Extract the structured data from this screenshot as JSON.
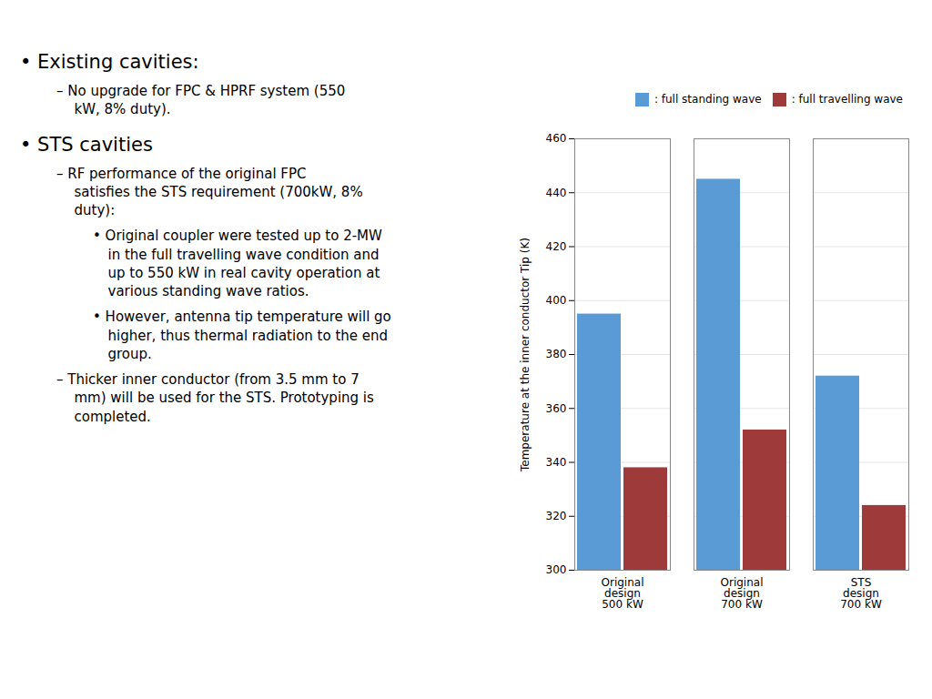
{
  "chart_data": {
    "type": "bar",
    "annotations": [
      {
        "text": "• Existing cavities:",
        "items": [
          {
            "text": "– No upgrade for FPC & HPRF system (550\nkW, 8% duty)."
          }
        ]
      },
      {
        "text": "• STS cavities",
        "items": [
          {
            "text": "– RF performance of the original FPC\nsatisfies the STS requirement (700kW, 8%\nduty):",
            "items": [
              {
                "text": "• Original coupler were tested up to 2-MW\nin the full travelling wave condition and\nup to 550 kW in real cavity operation at\nvarious standing wave ratios."
              },
              {
                "text": "• However, antenna tip temperature will go\nhigher, thus thermal radiation to the end\ngroup."
              }
            ]
          },
          {
            "text": "– Thicker inner conductor (from 3.5 mm to 7\nmm) will be used for the STS. Prototyping is\ncompleted."
          }
        ]
      }
    ],
    "categories": [
      "Original\ndesign\n500 kW",
      "Original\ndesign\n700 kW",
      "STS\ndesign\n700 kW"
    ],
    "series": [
      {
        "name": ": full standing wave",
        "color": "#5B9BD5",
        "values": [
          395,
          445,
          372
        ]
      },
      {
        "name": ": full travelling wave",
        "color": "#9E3A3A",
        "values": [
          338,
          352,
          324
        ]
      }
    ],
    "ylabel": "Temperature at the inner conductor Tip (K)",
    "ylim": [
      300,
      460
    ],
    "yticks": [
      300,
      320,
      340,
      360,
      380,
      400,
      420,
      440,
      460
    ],
    "grid": true,
    "legend": "upper right"
  }
}
